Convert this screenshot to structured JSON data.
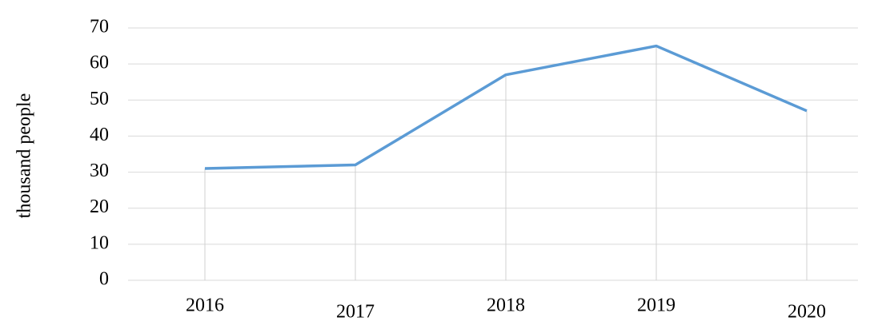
{
  "chart_data": {
    "type": "line",
    "y_label": "thousand people",
    "categories": [
      "2016",
      "2017",
      "2018",
      "2019",
      "2020"
    ],
    "series": [
      {
        "name": "thousand people",
        "color": "#5b9bd5",
        "values": [
          31,
          32,
          57,
          65,
          47
        ]
      }
    ],
    "ylim": [
      0,
      70
    ],
    "yticks": [
      0,
      10,
      20,
      30,
      40,
      50,
      60,
      70
    ],
    "grid": true,
    "drop_lines": true
  }
}
